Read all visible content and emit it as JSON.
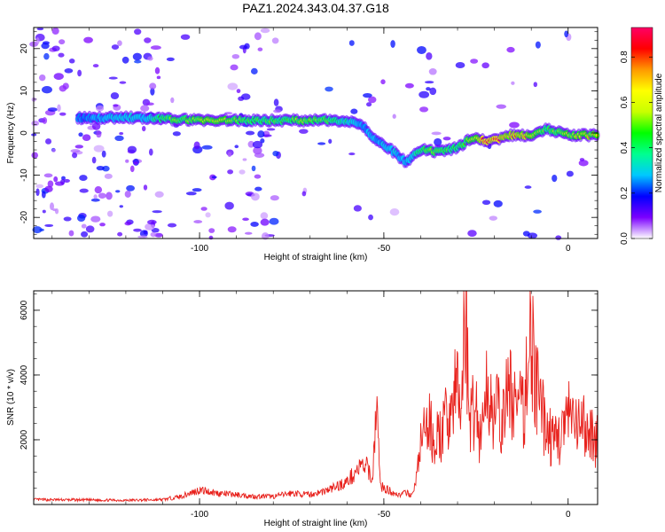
{
  "title": "PAZ1.2024.343.04.37.G18",
  "chart_data": [
    {
      "type": "heatmap",
      "xlabel": "Height of straight line (km)",
      "ylabel": "Frequency (Hz)",
      "xlim": [
        -145,
        8
      ],
      "ylim": [
        -25,
        25
      ],
      "xticks": [
        -100,
        -50,
        0
      ],
      "yticks": [
        -20,
        -10,
        0,
        10,
        20
      ],
      "grid": false,
      "colorbar": {
        "label": "Normalized spectral amplitude",
        "range": [
          0,
          0.93
        ],
        "ticks": [
          0.0,
          0.2,
          0.4,
          0.6,
          0.8
        ],
        "colors": [
          "#ffffff",
          "#7b00ff",
          "#0000ff",
          "#00c8ff",
          "#00ff90",
          "#00ff00",
          "#c8ff00",
          "#ffff00",
          "#ff9900",
          "#ff0000",
          "#ff0066"
        ]
      },
      "ridge": {
        "x": [
          -133,
          -120,
          -115,
          -105,
          -95,
          -85,
          -78,
          -70,
          -60,
          -56,
          -52,
          -48,
          -44,
          -40,
          -35,
          -30,
          -26,
          -22,
          -15,
          -10,
          -6,
          0,
          5,
          8
        ],
        "y": [
          3.5,
          3.7,
          3.5,
          3.2,
          3.0,
          3.0,
          3.0,
          3.0,
          3.0,
          2.0,
          -2.0,
          -4.0,
          -7.0,
          -4.0,
          -4.5,
          -3.5,
          -1.0,
          -2.0,
          -0.5,
          -0.5,
          1.0,
          -0.5,
          -0.5,
          -0.5
        ],
        "peak_amplitude": [
          0.25,
          0.35,
          0.35,
          0.55,
          0.65,
          0.45,
          0.5,
          0.55,
          0.4,
          0.3,
          0.3,
          0.35,
          0.3,
          0.45,
          0.55,
          0.45,
          0.6,
          0.9,
          0.75,
          0.7,
          0.5,
          0.6,
          0.7,
          0.6
        ]
      }
    },
    {
      "type": "line",
      "xlabel": "Height of straight line (km)",
      "ylabel": "SNR (10 * v/v)",
      "xlim": [
        -145,
        8
      ],
      "ylim": [
        0,
        6600
      ],
      "xticks": [
        -100,
        -50,
        0
      ],
      "yticks": [
        2000,
        4000,
        6000
      ],
      "grid": false,
      "series": [
        {
          "color": "#e8211c",
          "x": [
            -145,
            -130,
            -120,
            -110,
            -105,
            -100,
            -95,
            -90,
            -85,
            -80,
            -75,
            -70,
            -65,
            -60,
            -57,
            -55,
            -53,
            -52,
            -51,
            -50,
            -48,
            -46,
            -44,
            -42,
            -40,
            -38,
            -36,
            -34,
            -32,
            -30,
            -29,
            -28,
            -27,
            -26,
            -25,
            -24,
            -22,
            -20,
            -18,
            -16,
            -14,
            -12,
            -11,
            -10,
            -9,
            -8,
            -6,
            -4,
            -2,
            0,
            2,
            4,
            6,
            8
          ],
          "y": [
            150,
            140,
            130,
            150,
            250,
            450,
            350,
            300,
            250,
            250,
            350,
            300,
            450,
            700,
            1100,
            1200,
            800,
            3400,
            600,
            500,
            400,
            300,
            350,
            300,
            1800,
            2500,
            2000,
            2200,
            3000,
            3600,
            2600,
            6600,
            3000,
            2800,
            3200,
            2000,
            3500,
            3000,
            2500,
            3600,
            3000,
            2800,
            4500,
            5600,
            3800,
            3200,
            2400,
            1900,
            2200,
            2700,
            2300,
            2400,
            2200,
            2000
          ]
        }
      ]
    }
  ]
}
